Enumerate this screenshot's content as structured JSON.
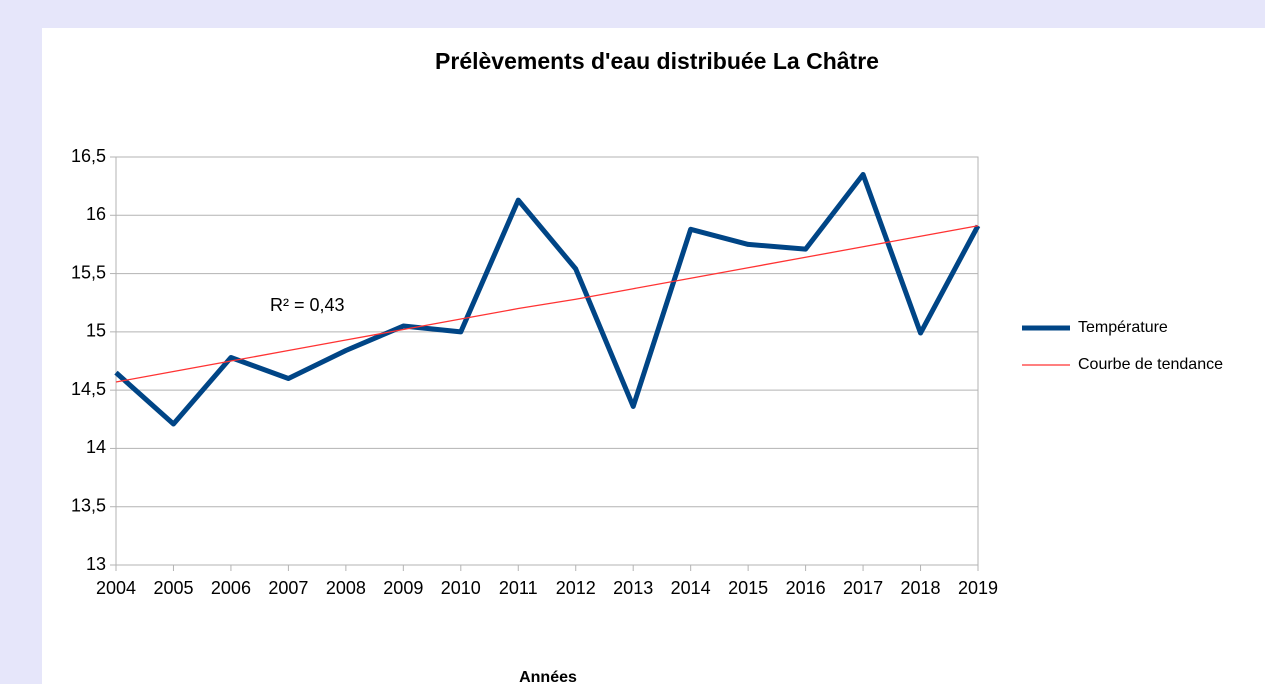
{
  "chart_data": {
    "type": "line",
    "title": "Prélèvements d'eau distribuée La Châtre",
    "x_label": "Années",
    "annotation": "R² = 0,43",
    "categories": [
      "2004",
      "2005",
      "2006",
      "2007",
      "2008",
      "2009",
      "2010",
      "2011",
      "2012",
      "2013",
      "2014",
      "2015",
      "2016",
      "2017",
      "2018",
      "2019"
    ],
    "series": [
      {
        "name": "Température",
        "color": "#004586",
        "values": [
          14.65,
          14.21,
          14.78,
          14.6,
          14.84,
          15.05,
          15.0,
          16.13,
          15.54,
          14.36,
          15.88,
          15.75,
          15.71,
          16.35,
          14.99,
          15.91
        ]
      },
      {
        "name": "Courbe de tendance",
        "color": "#ff3333",
        "values": [
          14.57,
          14.66,
          14.75,
          14.84,
          14.93,
          15.02,
          15.11,
          15.2,
          15.28,
          15.37,
          15.46,
          15.55,
          15.64,
          15.73,
          15.82,
          15.91
        ]
      }
    ],
    "ylim": [
      13,
      16.5
    ],
    "yticks": [
      13,
      {
        "value": 13.5,
        "label": "13,5"
      },
      14,
      {
        "value": 14.5,
        "label": "14,5"
      },
      15,
      {
        "value": 15.5,
        "label": "15,5"
      },
      16,
      {
        "value": 16.5,
        "label": "16,5"
      }
    ],
    "grid": true,
    "legend": "right"
  }
}
